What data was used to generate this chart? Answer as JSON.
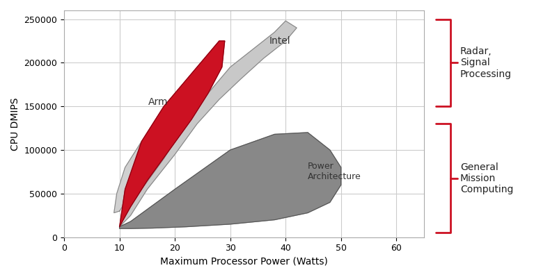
{
  "title": "",
  "xlabel": "Maximum Processor Power (Watts)",
  "ylabel": "CPU DMIPS",
  "xlim": [
    0,
    65
  ],
  "ylim": [
    0,
    260000
  ],
  "xticks": [
    0,
    10,
    20,
    30,
    40,
    50,
    60
  ],
  "yticks": [
    0,
    50000,
    100000,
    150000,
    200000,
    250000
  ],
  "ytick_labels": [
    "0",
    "50000",
    "100000",
    "150000",
    "200000",
    "250000"
  ],
  "bg_color": "#ffffff",
  "grid_color": "#cccccc",
  "arm_color": "#c8c8c8",
  "intel_color": "#d0d0d0",
  "red_color": "#cc1122",
  "power_color": "#888888",
  "label_radar": "Radar,\nSignal\nProcessing",
  "label_general": "General\nMission\nComputing",
  "label_arm": "Arm",
  "label_intel": "Intel",
  "label_power": "Power\nArchitecture",
  "arm_x": [
    10,
    9,
    9.5,
    11,
    14,
    18,
    22,
    26,
    28,
    29,
    28.5,
    26,
    22,
    18,
    13,
    10
  ],
  "arm_y": [
    30000,
    28000,
    50000,
    80000,
    110000,
    140000,
    165000,
    190000,
    210000,
    225000,
    215000,
    185000,
    155000,
    120000,
    60000,
    30000
  ],
  "intel_x": [
    10,
    11,
    14,
    18,
    22,
    26,
    30,
    34,
    38,
    40,
    42,
    40,
    36,
    32,
    28,
    24,
    20,
    15,
    12,
    10
  ],
  "intel_y": [
    12000,
    25000,
    55000,
    90000,
    130000,
    165000,
    195000,
    215000,
    235000,
    248000,
    240000,
    225000,
    205000,
    182000,
    158000,
    130000,
    95000,
    55000,
    25000,
    12000
  ],
  "red_x": [
    10,
    10.5,
    12,
    15,
    19,
    23,
    26,
    28.5,
    29,
    28,
    26,
    22,
    18,
    14,
    11,
    10
  ],
  "red_y": [
    12000,
    18000,
    35000,
    65000,
    100000,
    135000,
    165000,
    195000,
    225000,
    225000,
    210000,
    180000,
    150000,
    110000,
    55000,
    12000
  ],
  "power_x": [
    10,
    10,
    12,
    16,
    22,
    30,
    38,
    44,
    48,
    50,
    50,
    48,
    44,
    38,
    30,
    20,
    12,
    10
  ],
  "power_y": [
    12000,
    10000,
    10000,
    10500,
    12000,
    15000,
    20000,
    28000,
    40000,
    60000,
    80000,
    100000,
    120000,
    118000,
    100000,
    55000,
    18000,
    12000
  ]
}
